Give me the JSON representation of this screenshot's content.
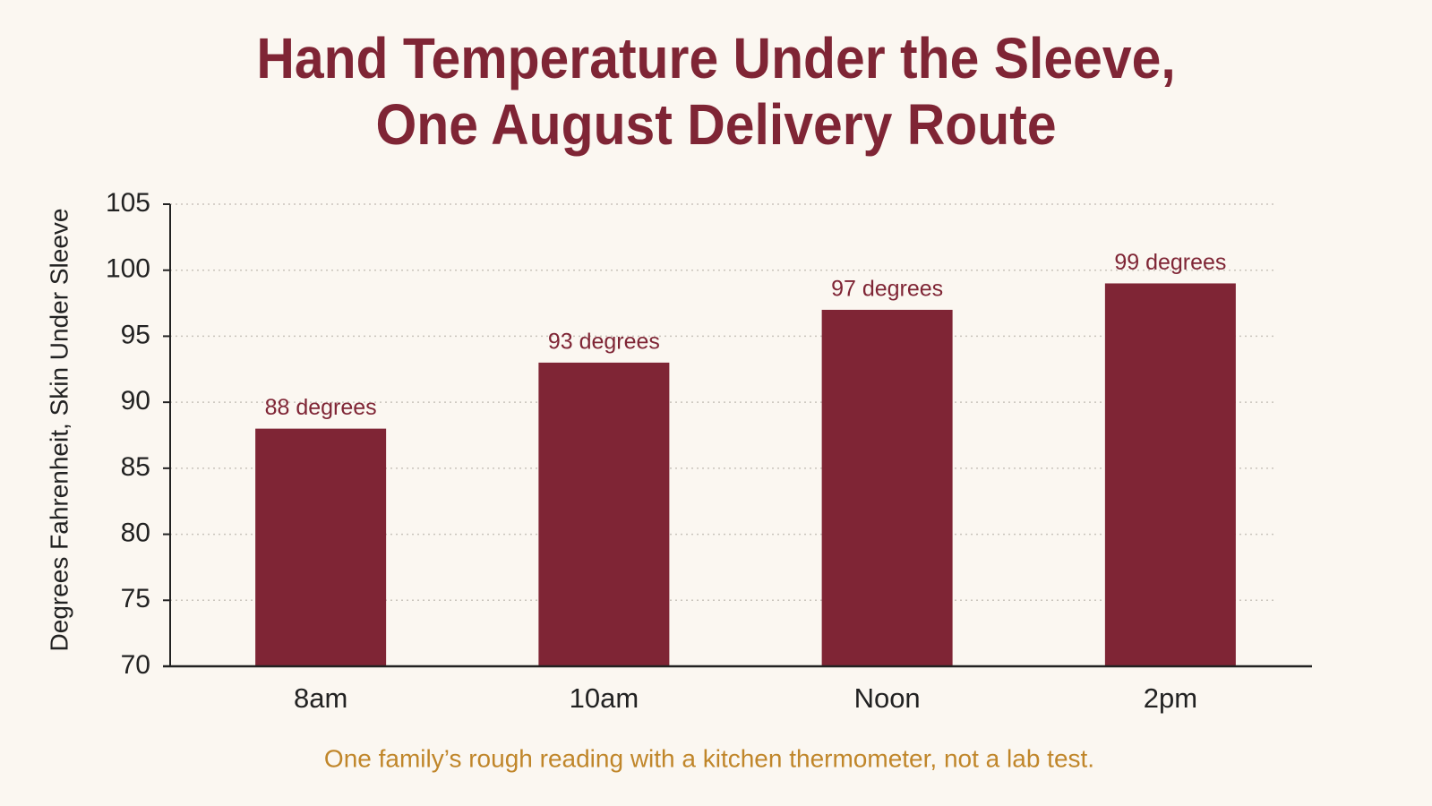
{
  "chart_data": {
    "type": "bar",
    "title": "Hand Temperature Under the Sleeve,\nOne August Delivery Route",
    "y_label": "Degrees Fahrenheit, Skin Under Sleeve",
    "note": "One family’s rough reading with a kitchen thermometer, not a lab test.",
    "categories": [
      "8am",
      "10am",
      "Noon",
      "2pm"
    ],
    "values": [
      88,
      93,
      97,
      99
    ],
    "value_labels": [
      "88 degrees",
      "93 degrees",
      "97 degrees",
      "99 degrees"
    ],
    "color": "#7f2535",
    "ylim": [
      70,
      105
    ],
    "yticks": [
      70,
      75,
      80,
      85,
      90,
      95,
      100,
      105
    ],
    "grid": true
  }
}
